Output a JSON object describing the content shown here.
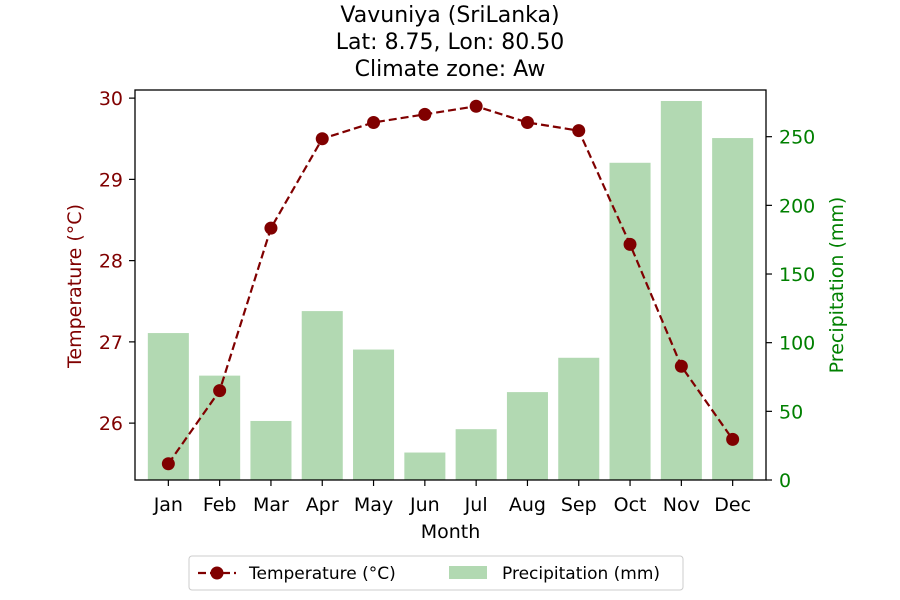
{
  "chart_data": {
    "type": "bar+line",
    "title_lines": [
      "Vavuniya (SriLanka)",
      "Lat: 8.75, Lon: 80.50",
      "Climate zone: Aw"
    ],
    "xlabel": "Month",
    "categories": [
      "Jan",
      "Feb",
      "Mar",
      "Apr",
      "May",
      "Jun",
      "Jul",
      "Aug",
      "Sep",
      "Oct",
      "Nov",
      "Dec"
    ],
    "temperature": {
      "name": "Temperature (°C)",
      "axis": "left",
      "ylabel": "Temperature (°C)",
      "color": "#800000",
      "style": "dashed line with circle markers",
      "ylim": [
        25.3,
        30.1
      ],
      "ticks": [
        26,
        27,
        28,
        29,
        30
      ],
      "values": [
        25.5,
        26.4,
        28.4,
        29.5,
        29.7,
        29.8,
        29.9,
        29.7,
        29.6,
        28.2,
        26.7,
        25.8
      ]
    },
    "precipitation": {
      "name": "Precipitation (mm)",
      "axis": "right",
      "ylabel": "Precipitation (mm)",
      "color": "#008000",
      "bar_color": "#b2d9b2",
      "ylim": [
        0,
        284
      ],
      "ticks": [
        0,
        50,
        100,
        150,
        200,
        250
      ],
      "values": [
        107,
        76,
        43,
        123,
        95,
        20,
        37,
        64,
        89,
        231,
        276,
        249
      ]
    },
    "legend": {
      "placement": "bottom-center",
      "entries": [
        "Temperature (°C)",
        "Precipitation (mm)"
      ]
    },
    "grid": false
  }
}
